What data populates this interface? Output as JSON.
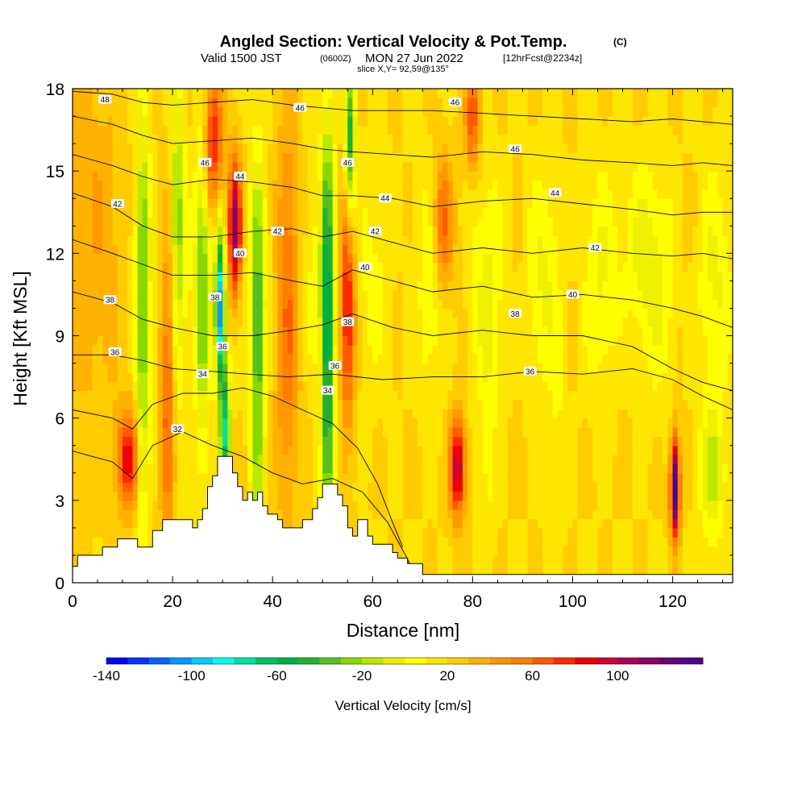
{
  "chart_data": {
    "type": "heatmap",
    "title": "Angled Section: Vertical Velocity & Pot.Temp.",
    "title_units": "(C)",
    "subtitle": {
      "valid": "Valid 1500 JST",
      "utc": "(0600Z)",
      "date": "MON 27 Jun 2022",
      "forecast": "[12hrFcst@2234z]"
    },
    "slice_label": "slice X,Y= 92,59@135°",
    "xlabel": "Distance [nm]",
    "ylabel": "Height [Kft MSL]",
    "xlim": [
      0,
      132
    ],
    "ylim": [
      0,
      18
    ],
    "xticks": [
      0,
      20,
      40,
      60,
      80,
      100,
      120
    ],
    "yticks": [
      0,
      3,
      6,
      9,
      12,
      15,
      18
    ],
    "colorbar": {
      "label": "Vertical Velocity [cm/s]",
      "tick_labels": [
        "-140",
        "-100",
        "-60",
        "-20",
        "20",
        "60",
        "100"
      ],
      "tick_values": [
        -140,
        -100,
        -60,
        -20,
        20,
        60,
        100
      ],
      "range": [
        -140,
        140
      ],
      "colors": [
        "#0000ff",
        "#0033ff",
        "#0066ff",
        "#0099ff",
        "#00ccff",
        "#00ffee",
        "#00e0a0",
        "#00c060",
        "#00b040",
        "#22b030",
        "#55c020",
        "#88d800",
        "#bbe800",
        "#eef000",
        "#ffff00",
        "#ffe600",
        "#ffcc00",
        "#ffb300",
        "#ff9900",
        "#ff7f00",
        "#ff5a00",
        "#ff2a00",
        "#ee0000",
        "#cc0033",
        "#aa0055",
        "#880066",
        "#660077",
        "#550088"
      ]
    },
    "terrain": [
      [
        0,
        0.6
      ],
      [
        1,
        1.0
      ],
      [
        6,
        1.3
      ],
      [
        9,
        1.6
      ],
      [
        13,
        1.3
      ],
      [
        16,
        1.9
      ],
      [
        18,
        2.3
      ],
      [
        23,
        2.3
      ],
      [
        24,
        2.0
      ],
      [
        25,
        2.3
      ],
      [
        26,
        2.7
      ],
      [
        27,
        3.5
      ],
      [
        28,
        3.9
      ],
      [
        29,
        4.6
      ],
      [
        31,
        4.6
      ],
      [
        32,
        4.0
      ],
      [
        33,
        3.5
      ],
      [
        34,
        3.0
      ],
      [
        35,
        3.3
      ],
      [
        36,
        3.0
      ],
      [
        37,
        3.3
      ],
      [
        38,
        2.8
      ],
      [
        39,
        2.5
      ],
      [
        41,
        2.3
      ],
      [
        42,
        2.0
      ],
      [
        45,
        2.0
      ],
      [
        46,
        2.3
      ],
      [
        48,
        2.7
      ],
      [
        49,
        3.1
      ],
      [
        50,
        3.6
      ],
      [
        52,
        3.6
      ],
      [
        53,
        3.2
      ],
      [
        54,
        2.8
      ],
      [
        55,
        2.0
      ],
      [
        56,
        1.7
      ],
      [
        57,
        2.3
      ],
      [
        58,
        2.3
      ],
      [
        59,
        1.7
      ],
      [
        60,
        1.4
      ],
      [
        64,
        1.1
      ],
      [
        65,
        0.9
      ],
      [
        67,
        0.7
      ],
      [
        70,
        0.3
      ],
      [
        132,
        0.3
      ]
    ],
    "velocity_features": [
      {
        "x": 3,
        "z": 12,
        "w": 30,
        "wx": 6,
        "wz": 6
      },
      {
        "x": 11,
        "z": 4.5,
        "w": 65,
        "wx": 2.2,
        "wz": 1.8
      },
      {
        "x": 14,
        "z": 10,
        "w": -45,
        "wx": 1.2,
        "wz": 9
      },
      {
        "x": 19,
        "z": 7,
        "w": 45,
        "wx": 1.5,
        "wz": 6
      },
      {
        "x": 21,
        "z": 13,
        "w": -45,
        "wx": 1.3,
        "wz": 6
      },
      {
        "x": 26,
        "z": 11,
        "w": -40,
        "wx": 1.3,
        "wz": 7
      },
      {
        "x": 29.5,
        "z": 10,
        "w": -125,
        "wx": 0.9,
        "wz": 2.5
      },
      {
        "x": 30.5,
        "z": 5.5,
        "w": -90,
        "wx": 1.0,
        "wz": 2.5
      },
      {
        "x": 32.5,
        "z": 13,
        "w": 95,
        "wx": 1.3,
        "wz": 2.5
      },
      {
        "x": 28,
        "z": 16,
        "w": 60,
        "wx": 2.0,
        "wz": 2.5
      },
      {
        "x": 37,
        "z": 8,
        "w": -55,
        "wx": 1.2,
        "wz": 7
      },
      {
        "x": 43,
        "z": 10,
        "w": 40,
        "wx": 2.5,
        "wz": 7
      },
      {
        "x": 51,
        "z": 9,
        "w": -80,
        "wx": 1.3,
        "wz": 8
      },
      {
        "x": 55,
        "z": 10,
        "w": 65,
        "wx": 1.5,
        "wz": 4
      },
      {
        "x": 55.5,
        "z": 16,
        "w": -70,
        "wx": 1.0,
        "wz": 3
      },
      {
        "x": 74,
        "z": 13,
        "w": 50,
        "wx": 2.0,
        "wz": 2.5
      },
      {
        "x": 77,
        "z": 4.2,
        "w": 80,
        "wx": 1.6,
        "wz": 1.8
      },
      {
        "x": 80,
        "z": 17,
        "w": 50,
        "wx": 1.5,
        "wz": 2.0
      },
      {
        "x": 83,
        "z": 5,
        "w": -15,
        "wx": 1.5,
        "wz": 4
      },
      {
        "x": 97,
        "z": 5,
        "w": -10,
        "wx": 1.5,
        "wz": 4
      },
      {
        "x": 113,
        "z": 12,
        "w": -20,
        "wx": 3.0,
        "wz": 3
      },
      {
        "x": 120.5,
        "z": 3.5,
        "w": 125,
        "wx": 0.9,
        "wz": 1.8
      },
      {
        "x": 128,
        "z": 4,
        "w": -35,
        "wx": 2.5,
        "wz": 2.5
      }
    ],
    "contours": [
      {
        "label": "32",
        "points": [
          [
            0,
            4.8
          ],
          [
            8,
            4.4
          ],
          [
            12,
            3.8
          ],
          [
            16,
            5.0
          ],
          [
            22,
            5.5
          ],
          [
            28,
            5.0
          ],
          [
            34,
            4.6
          ],
          [
            40,
            4.0
          ],
          [
            46,
            3.6
          ],
          [
            52,
            3.8
          ],
          [
            58,
            3.3
          ],
          [
            63,
            2.2
          ],
          [
            66,
            1.2
          ],
          [
            68,
            0.5
          ]
        ]
      },
      {
        "label": "34",
        "points": [
          [
            0,
            6.3
          ],
          [
            8,
            6.0
          ],
          [
            12,
            5.6
          ],
          [
            16,
            6.5
          ],
          [
            22,
            6.9
          ],
          [
            28,
            6.9
          ],
          [
            34,
            7.1
          ],
          [
            40,
            6.8
          ],
          [
            46,
            6.3
          ],
          [
            52,
            5.8
          ],
          [
            57,
            4.9
          ],
          [
            61,
            3.6
          ],
          [
            64,
            2.2
          ],
          [
            66,
            1.3
          ]
        ]
      },
      {
        "label": "36",
        "points": [
          [
            0,
            8.3
          ],
          [
            8,
            8.3
          ],
          [
            14,
            8.1
          ],
          [
            20,
            7.8
          ],
          [
            28,
            7.7
          ],
          [
            35,
            7.6
          ],
          [
            43,
            7.5
          ],
          [
            52,
            7.6
          ],
          [
            62,
            7.4
          ],
          [
            72,
            7.5
          ],
          [
            82,
            7.5
          ],
          [
            92,
            7.7
          ],
          [
            102,
            7.6
          ],
          [
            112,
            7.8
          ],
          [
            120,
            7.4
          ],
          [
            126,
            6.8
          ],
          [
            132,
            6.3
          ]
        ]
      },
      {
        "label": "38",
        "points": [
          [
            0,
            10.6
          ],
          [
            8,
            10.2
          ],
          [
            14,
            9.6
          ],
          [
            20,
            9.3
          ],
          [
            28,
            9.0
          ],
          [
            36,
            9.0
          ],
          [
            44,
            9.2
          ],
          [
            50,
            9.4
          ],
          [
            56,
            9.8
          ],
          [
            64,
            9.3
          ],
          [
            72,
            9.0
          ],
          [
            82,
            9.2
          ],
          [
            92,
            9.0
          ],
          [
            102,
            9.0
          ],
          [
            112,
            8.6
          ],
          [
            120,
            7.8
          ],
          [
            126,
            7.3
          ],
          [
            132,
            7.0
          ]
        ]
      },
      {
        "label": "40",
        "points": [
          [
            0,
            12.5
          ],
          [
            8,
            12.0
          ],
          [
            14,
            11.6
          ],
          [
            20,
            11.2
          ],
          [
            28,
            11.2
          ],
          [
            36,
            11.3
          ],
          [
            44,
            11.0
          ],
          [
            50,
            10.8
          ],
          [
            56,
            11.4
          ],
          [
            64,
            11.0
          ],
          [
            72,
            10.6
          ],
          [
            82,
            10.8
          ],
          [
            92,
            10.4
          ],
          [
            102,
            10.5
          ],
          [
            112,
            10.3
          ],
          [
            120,
            10.0
          ],
          [
            126,
            9.7
          ],
          [
            132,
            9.3
          ]
        ]
      },
      {
        "label": "42",
        "points": [
          [
            0,
            14.2
          ],
          [
            8,
            13.7
          ],
          [
            14,
            13.0
          ],
          [
            20,
            12.6
          ],
          [
            28,
            12.6
          ],
          [
            36,
            12.8
          ],
          [
            44,
            12.9
          ],
          [
            50,
            12.6
          ],
          [
            56,
            12.8
          ],
          [
            64,
            12.4
          ],
          [
            72,
            12.0
          ],
          [
            82,
            12.2
          ],
          [
            92,
            12.0
          ],
          [
            102,
            12.2
          ],
          [
            112,
            12.0
          ],
          [
            120,
            11.9
          ],
          [
            126,
            12.0
          ],
          [
            132,
            11.8
          ]
        ]
      },
      {
        "label": "44",
        "points": [
          [
            0,
            15.6
          ],
          [
            8,
            15.2
          ],
          [
            14,
            14.8
          ],
          [
            20,
            14.5
          ],
          [
            28,
            14.7
          ],
          [
            36,
            14.6
          ],
          [
            44,
            14.4
          ],
          [
            50,
            14.1
          ],
          [
            56,
            14.1
          ],
          [
            64,
            14.0
          ],
          [
            72,
            13.7
          ],
          [
            82,
            13.9
          ],
          [
            92,
            14.0
          ],
          [
            102,
            13.8
          ],
          [
            112,
            13.6
          ],
          [
            120,
            13.4
          ],
          [
            126,
            13.5
          ],
          [
            132,
            13.5
          ]
        ]
      },
      {
        "label": "46",
        "points": [
          [
            0,
            17.0
          ],
          [
            8,
            16.7
          ],
          [
            14,
            16.3
          ],
          [
            20,
            16.0
          ],
          [
            28,
            16.1
          ],
          [
            36,
            16.2
          ],
          [
            44,
            16.0
          ],
          [
            50,
            15.8
          ],
          [
            56,
            15.7
          ],
          [
            64,
            15.6
          ],
          [
            72,
            15.5
          ],
          [
            82,
            15.7
          ],
          [
            92,
            15.6
          ],
          [
            102,
            15.4
          ],
          [
            112,
            15.3
          ],
          [
            120,
            15.2
          ],
          [
            126,
            15.3
          ],
          [
            132,
            15.2
          ]
        ]
      },
      {
        "label": "48",
        "points": [
          [
            0,
            17.9
          ],
          [
            8,
            17.8
          ],
          [
            14,
            17.5
          ],
          [
            20,
            17.4
          ],
          [
            28,
            17.5
          ],
          [
            36,
            17.6
          ],
          [
            44,
            17.4
          ],
          [
            50,
            17.3
          ],
          [
            56,
            17.2
          ],
          [
            64,
            17.2
          ],
          [
            72,
            17.2
          ],
          [
            82,
            17.1
          ],
          [
            92,
            17.0
          ],
          [
            102,
            16.9
          ],
          [
            112,
            16.8
          ],
          [
            120,
            16.9
          ],
          [
            126,
            16.8
          ],
          [
            132,
            16.7
          ]
        ]
      }
    ],
    "contour_labels": [
      {
        "text": "48",
        "x": 6.5,
        "z": 17.6
      },
      {
        "text": "46",
        "x": 26.5,
        "z": 15.3
      },
      {
        "text": "46",
        "x": 45.5,
        "z": 17.3
      },
      {
        "text": "46",
        "x": 55,
        "z": 15.3
      },
      {
        "text": "46",
        "x": 76.5,
        "z": 17.5
      },
      {
        "text": "46",
        "x": 88.5,
        "z": 15.8
      },
      {
        "text": "44",
        "x": 33.5,
        "z": 14.8
      },
      {
        "text": "44",
        "x": 62.5,
        "z": 14.0
      },
      {
        "text": "44",
        "x": 96.5,
        "z": 14.2
      },
      {
        "text": "42",
        "x": 9,
        "z": 13.8
      },
      {
        "text": "42",
        "x": 41,
        "z": 12.8
      },
      {
        "text": "42",
        "x": 60.5,
        "z": 12.8
      },
      {
        "text": "42",
        "x": 104.5,
        "z": 12.2
      },
      {
        "text": "40",
        "x": 33.5,
        "z": 12.0
      },
      {
        "text": "40",
        "x": 58.5,
        "z": 11.5
      },
      {
        "text": "40",
        "x": 100,
        "z": 10.5
      },
      {
        "text": "38",
        "x": 7.5,
        "z": 10.3
      },
      {
        "text": "38",
        "x": 28.5,
        "z": 10.4
      },
      {
        "text": "38",
        "x": 55,
        "z": 9.5
      },
      {
        "text": "38",
        "x": 88.5,
        "z": 9.8
      },
      {
        "text": "36",
        "x": 8.5,
        "z": 8.4
      },
      {
        "text": "36",
        "x": 30,
        "z": 8.6
      },
      {
        "text": "36",
        "x": 52.5,
        "z": 7.9
      },
      {
        "text": "36",
        "x": 91.5,
        "z": 7.7
      },
      {
        "text": "34",
        "x": 26,
        "z": 7.6
      },
      {
        "text": "34",
        "x": 51,
        "z": 7.0
      },
      {
        "text": "32",
        "x": 21,
        "z": 5.6
      }
    ]
  }
}
